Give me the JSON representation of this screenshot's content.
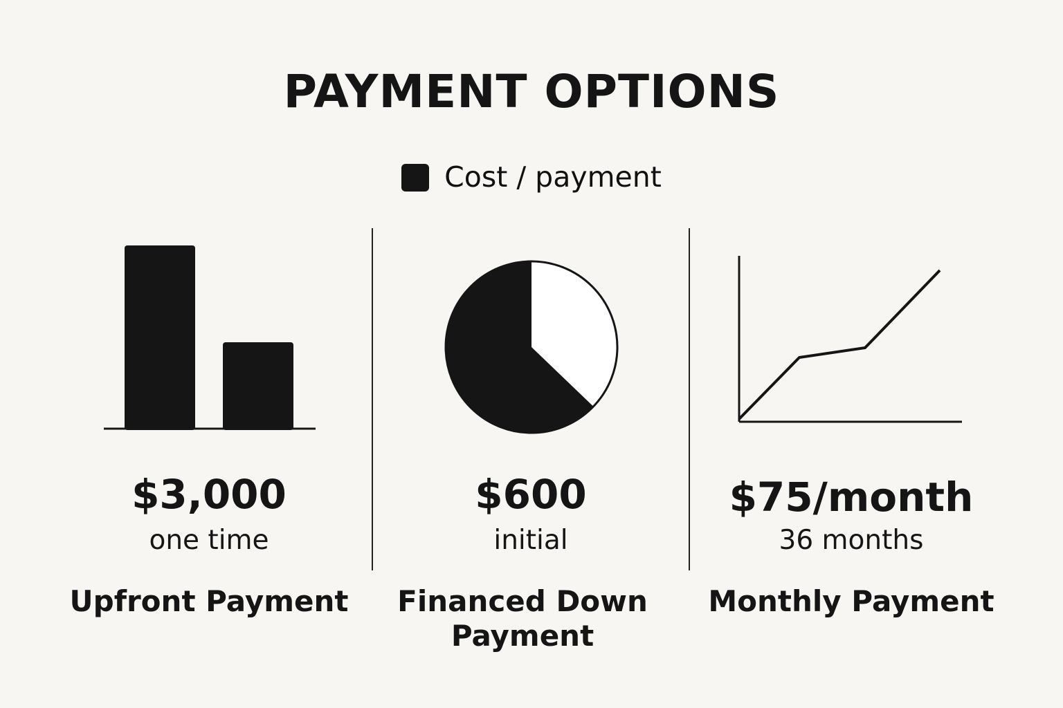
{
  "title": "PAYMENT OPTIONS",
  "legend": {
    "label": "Cost / payment",
    "color": "#151515"
  },
  "options": [
    {
      "amount": "$3,000",
      "detail": "one time",
      "name": "Upfront Payment",
      "icon": "bar-chart-icon"
    },
    {
      "amount": "$600",
      "detail": "initial",
      "name_line1": "Financed Down",
      "name_line2": "Payment",
      "icon": "pie-chart-icon"
    },
    {
      "amount": "$75/month",
      "detail": "36 months",
      "name": "Monthly Payment",
      "icon": "line-chart-icon"
    }
  ],
  "colors": {
    "background": "#f7f6f3",
    "ink": "#151515"
  }
}
